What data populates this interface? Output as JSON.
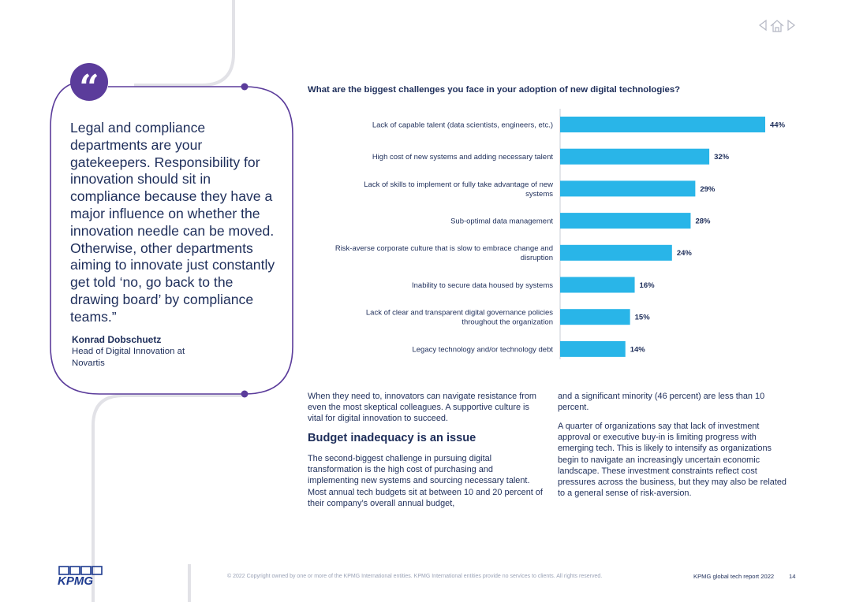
{
  "quote": {
    "mark": "“",
    "text": "Legal and compliance departments are your gatekeepers. Responsibility for innovation should sit in compliance because they have a major influence on whether the innovation needle can be moved. Otherwise, other departments aiming to innovate just constantly get told ‘no, go back to the drawing board’ by compliance teams.”",
    "author": "Konrad Dobschuetz",
    "role": "Head of Digital Innovation at Novartis"
  },
  "chart_data": {
    "type": "bar",
    "orientation": "horizontal",
    "title": "What are the biggest challenges you face in your adoption of new digital technologies?",
    "categories": [
      "Lack of capable talent (data scientists, engineers, etc.)",
      "High cost of new systems and adding necessary talent",
      "Lack of skills to implement or fully take advantage of new systems",
      "Sub-optimal data management",
      "Risk-averse corporate culture that is slow to embrace change and disruption",
      "Inability to secure data housed by systems",
      "Lack of clear and transparent digital governance policies throughout the organization",
      "Legacy technology and/or technology debt"
    ],
    "category_lines": [
      [
        "Lack of capable talent (data scientists, engineers, etc.)"
      ],
      [
        "High cost of new systems and adding necessary talent"
      ],
      [
        "Lack of skills to implement or fully take advantage of new",
        "systems"
      ],
      [
        "Sub-optimal data management"
      ],
      [
        "Risk-averse corporate culture that is slow to embrace change and",
        "disruption"
      ],
      [
        "Inability to secure data housed by systems"
      ],
      [
        "Lack of clear and transparent digital governance policies",
        "throughout the organization"
      ],
      [
        "Legacy technology and/or technology debt"
      ]
    ],
    "values": [
      44,
      32,
      29,
      28,
      24,
      16,
      15,
      14
    ],
    "value_labels": [
      "44%",
      "32%",
      "29%",
      "28%",
      "24%",
      "16%",
      "15%",
      "14%"
    ],
    "unit": "%",
    "xlim": [
      0,
      44
    ],
    "xlabel": "",
    "ylabel": "",
    "grid": false,
    "legend": "none",
    "bar_color": "#29b5e8"
  },
  "body": {
    "intro": "When they need to, innovators can navigate resistance from even the most skeptical colleagues. A supportive culture is vital for digital innovation to succeed.",
    "heading": "Budget inadequacy is an issue",
    "para1": "The second-biggest challenge in pursuing digital transformation is the high cost of purchasing and implementing new systems and sourcing necessary talent. Most annual tech budgets sit at between 10 and 20 percent of their company’s overall annual budget,",
    "para2": "and a significant minority (46 percent) are less than 10 percent.",
    "para3": "A quarter of organizations say that lack of investment approval or executive buy-in is limiting progress with emerging tech. This is likely to intensify as organizations begin to navigate an increasingly uncertain economic landscape. These investment constraints reflect cost pressures across the business, but they may also be related to a general sense of risk-aversion."
  },
  "footer": {
    "logo": "KPMG",
    "copyright": "© 2022 Copyright owned by one or more of the KPMG International entities. KPMG International entities provide no services to clients. All rights reserved.",
    "report_name": "KPMG global tech report 2022",
    "page_number": "14"
  },
  "colors": {
    "accent_purple": "#5b3c9b",
    "navy": "#1e2e5a",
    "bar_blue": "#29b5e8",
    "deco_gray": "#e2e2e7"
  },
  "nav": {
    "prev_icon": "triangle-left-icon",
    "home_icon": "home-icon",
    "next_icon": "triangle-right-icon"
  }
}
